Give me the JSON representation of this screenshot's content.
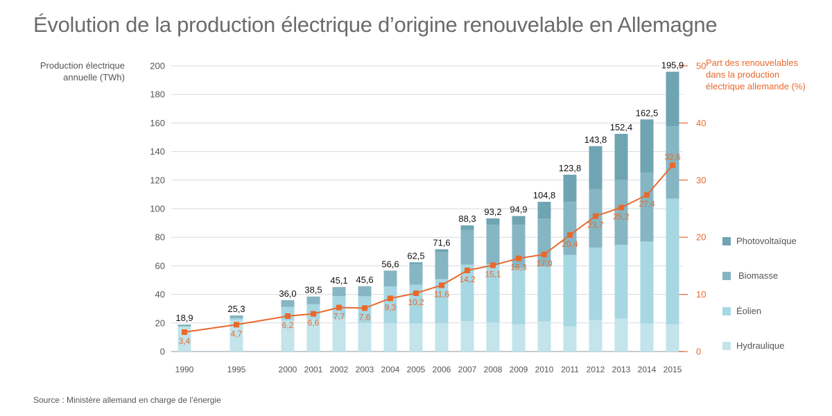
{
  "title": "Évolution de la production électrique d’origine renouvelable en Allemagne",
  "left_axis_label": [
    "Production électrique",
    "annuelle (TWh)"
  ],
  "right_axis_label": [
    "Part des renouvelables",
    "dans la production",
    "électrique allemande (%)"
  ],
  "source": "Source : Ministère allemand en charge de l’énergie",
  "colors": {
    "Photovoltaïque": "#6fa4b3",
    "Biomasse": "#86b6c3",
    "Éolien": "#a7d7e3",
    "Hydraulique": "#c2e4ea",
    "share_line": "#e8692e",
    "grid": "#d5dbe0",
    "axis_text": "#555555"
  },
  "chart_data": {
    "type": "bar",
    "subtype": "stacked bar with line on secondary axis",
    "title": "Évolution de la production électrique d’origine renouvelable en Allemagne",
    "xlabel": "",
    "ylabel": "Production électrique annuelle (TWh)",
    "y2label": "Part des renouvelables dans la production électrique allemande (%)",
    "ylim": [
      0,
      200
    ],
    "y2lim": [
      0,
      50
    ],
    "yticks": [
      0,
      20,
      40,
      60,
      80,
      100,
      120,
      140,
      160,
      180,
      200
    ],
    "y2ticks": [
      0,
      10,
      20,
      30,
      40,
      50
    ],
    "grid": true,
    "legend_position": "right",
    "categories": [
      "1990",
      "1995",
      "2000",
      "2001",
      "2002",
      "2003",
      "2004",
      "2005",
      "2006",
      "2007",
      "2008",
      "2009",
      "2010",
      "2011",
      "2012",
      "2013",
      "2014",
      "2015"
    ],
    "series": [
      {
        "name": "Hydraulique",
        "values": [
          17.4,
          21.8,
          21.7,
          22.6,
          23.0,
          20.0,
          20.0,
          19.6,
          20.0,
          21.2,
          20.4,
          19.0,
          21.0,
          17.7,
          22.1,
          23.0,
          19.6,
          19.0
        ]
      },
      {
        "name": "Éolien",
        "values": [
          0.1,
          1.5,
          9.5,
          10.5,
          15.8,
          18.7,
          25.5,
          27.2,
          30.7,
          39.7,
          40.6,
          39.4,
          38.5,
          49.9,
          50.7,
          51.7,
          57.4,
          88.0
        ]
      },
      {
        "name": "Biomasse",
        "values": [
          1.4,
          2.0,
          4.8,
          5.3,
          6.1,
          6.3,
          10.5,
          14.4,
          18.9,
          24.3,
          27.8,
          30.3,
          33.7,
          37.2,
          41.0,
          45.5,
          48.3,
          50.7
        ]
      },
      {
        "name": "Photovoltaïque",
        "values": [
          0.0,
          0.0,
          0.0,
          0.1,
          0.2,
          0.6,
          0.6,
          1.3,
          2.0,
          3.1,
          4.4,
          6.2,
          11.6,
          19.0,
          30.0,
          32.2,
          37.2,
          38.2
        ]
      }
    ],
    "totals": [
      "18,9",
      "25,3",
      "36,0",
      "38,5",
      "45,1",
      "45,6",
      "56,6",
      "62,5",
      "71,6",
      "88,3",
      "93,2",
      "94,9",
      "104,8",
      "123,8",
      "143,8",
      "152,4",
      "162,5",
      "195,9"
    ],
    "totals_values": [
      18.9,
      25.3,
      36.0,
      38.5,
      45.1,
      45.6,
      56.6,
      62.5,
      71.6,
      88.3,
      93.2,
      94.9,
      104.8,
      123.8,
      143.8,
      152.4,
      162.5,
      195.9
    ],
    "share": {
      "name": "Part des renouvelables dans la production électrique allemande (%)",
      "values": [
        3.4,
        4.7,
        6.2,
        6.6,
        7.7,
        7.6,
        9.3,
        10.2,
        11.6,
        14.2,
        15.1,
        16.3,
        17.0,
        20.4,
        23.7,
        25.2,
        27.4,
        32.6
      ],
      "labels": [
        "3,4",
        "4,7",
        "6,2",
        "6,6",
        "7,7",
        "7,6",
        "9,3",
        "10,2",
        "11,6",
        "14,2",
        "15,1",
        "16,3",
        "17,0",
        "20,4",
        "23,7",
        "25,2",
        "27,4",
        "32,6"
      ]
    },
    "legend": [
      "Photovoltaïque",
      "Biomasse",
      "Éolien",
      "Hydraulique"
    ]
  }
}
